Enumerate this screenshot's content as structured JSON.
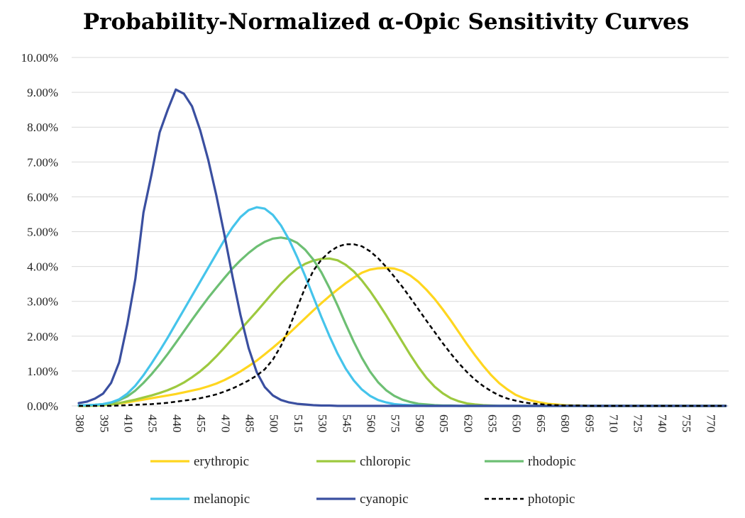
{
  "chart_data": {
    "type": "line",
    "title": "Probability-Normalized α-Opic Sensitivity Curves",
    "xlabel": "",
    "ylabel": "",
    "x": [
      380,
      385,
      390,
      395,
      400,
      405,
      410,
      415,
      420,
      425,
      430,
      435,
      440,
      445,
      450,
      455,
      460,
      465,
      470,
      475,
      480,
      485,
      490,
      495,
      500,
      505,
      510,
      515,
      520,
      525,
      530,
      535,
      540,
      545,
      550,
      555,
      560,
      565,
      570,
      575,
      580,
      585,
      590,
      595,
      600,
      605,
      610,
      615,
      620,
      625,
      630,
      635,
      640,
      645,
      650,
      655,
      660,
      665,
      670,
      675,
      680,
      685,
      690,
      695,
      700,
      705,
      710,
      715,
      720,
      725,
      730,
      735,
      740,
      745,
      750,
      755,
      760,
      765,
      770,
      775,
      780
    ],
    "x_tick_labels": [
      "380",
      "395",
      "410",
      "425",
      "440",
      "455",
      "470",
      "485",
      "500",
      "515",
      "530",
      "545",
      "560",
      "575",
      "590",
      "605",
      "620",
      "635",
      "650",
      "665",
      "680",
      "695",
      "710",
      "725",
      "740",
      "755",
      "770"
    ],
    "y_tick_labels": [
      "0.00%",
      "1.00%",
      "2.00%",
      "3.00%",
      "4.00%",
      "5.00%",
      "6.00%",
      "7.00%",
      "8.00%",
      "9.00%",
      "10.00%"
    ],
    "ylim": [
      0,
      10
    ],
    "y_unit": "%",
    "grid": "horizontal",
    "legend_position": "bottom",
    "series": [
      {
        "name": "erythropic",
        "color": "#FFD61F",
        "dash": "solid",
        "values": [
          0,
          0,
          0.01,
          0.02,
          0.04,
          0.07,
          0.1,
          0.14,
          0.18,
          0.22,
          0.26,
          0.3,
          0.34,
          0.39,
          0.44,
          0.49,
          0.56,
          0.64,
          0.74,
          0.86,
          0.99,
          1.14,
          1.3,
          1.48,
          1.67,
          1.87,
          2.08,
          2.3,
          2.52,
          2.74,
          2.95,
          3.15,
          3.34,
          3.52,
          3.68,
          3.82,
          3.91,
          3.95,
          3.96,
          3.94,
          3.87,
          3.74,
          3.56,
          3.33,
          3.07,
          2.77,
          2.45,
          2.11,
          1.77,
          1.45,
          1.15,
          0.88,
          0.65,
          0.47,
          0.32,
          0.22,
          0.15,
          0.1,
          0.06,
          0.04,
          0.02,
          0.01,
          0.01,
          0,
          0,
          0,
          0,
          0,
          0,
          0,
          0,
          0,
          0,
          0,
          0,
          0,
          0,
          0,
          0,
          0,
          0
        ]
      },
      {
        "name": "chloropic",
        "color": "#9DC93F",
        "dash": "solid",
        "values": [
          0,
          0,
          0.01,
          0.02,
          0.04,
          0.08,
          0.13,
          0.18,
          0.24,
          0.3,
          0.37,
          0.45,
          0.55,
          0.67,
          0.82,
          0.99,
          1.19,
          1.42,
          1.67,
          1.93,
          2.19,
          2.45,
          2.71,
          2.98,
          3.25,
          3.51,
          3.74,
          3.94,
          4.08,
          4.17,
          4.22,
          4.23,
          4.18,
          4.05,
          3.86,
          3.6,
          3.3,
          2.96,
          2.6,
          2.22,
          1.84,
          1.46,
          1.11,
          0.8,
          0.55,
          0.36,
          0.22,
          0.13,
          0.07,
          0.04,
          0.02,
          0.01,
          0,
          0,
          0,
          0,
          0,
          0,
          0,
          0,
          0,
          0,
          0,
          0,
          0,
          0,
          0,
          0,
          0,
          0,
          0,
          0,
          0,
          0,
          0,
          0,
          0,
          0,
          0,
          0,
          0
        ]
      },
      {
        "name": "rhodopic",
        "color": "#6DBF73",
        "dash": "solid",
        "values": [
          0.01,
          0.02,
          0.03,
          0.05,
          0.09,
          0.16,
          0.27,
          0.44,
          0.66,
          0.91,
          1.19,
          1.49,
          1.81,
          2.14,
          2.47,
          2.79,
          3.1,
          3.39,
          3.67,
          3.94,
          4.18,
          4.39,
          4.57,
          4.71,
          4.8,
          4.83,
          4.79,
          4.68,
          4.48,
          4.2,
          3.83,
          3.38,
          2.88,
          2.35,
          1.84,
          1.38,
          0.99,
          0.68,
          0.45,
          0.29,
          0.18,
          0.11,
          0.06,
          0.04,
          0.02,
          0.01,
          0.01,
          0,
          0,
          0,
          0,
          0,
          0,
          0,
          0,
          0,
          0,
          0,
          0,
          0,
          0,
          0,
          0,
          0,
          0,
          0,
          0,
          0,
          0,
          0,
          0,
          0,
          0,
          0,
          0,
          0,
          0,
          0,
          0,
          0,
          0
        ]
      },
      {
        "name": "melanopic",
        "color": "#45C4EB",
        "dash": "solid",
        "values": [
          0.01,
          0.02,
          0.03,
          0.05,
          0.1,
          0.19,
          0.35,
          0.58,
          0.88,
          1.22,
          1.58,
          1.96,
          2.36,
          2.76,
          3.16,
          3.56,
          3.96,
          4.36,
          4.76,
          5.12,
          5.42,
          5.62,
          5.7,
          5.66,
          5.48,
          5.18,
          4.77,
          4.27,
          3.72,
          3.13,
          2.55,
          2.0,
          1.5,
          1.07,
          0.73,
          0.47,
          0.29,
          0.17,
          0.1,
          0.05,
          0.03,
          0.02,
          0.01,
          0,
          0,
          0,
          0,
          0,
          0,
          0,
          0,
          0,
          0,
          0,
          0,
          0,
          0,
          0,
          0,
          0,
          0,
          0,
          0,
          0,
          0,
          0,
          0,
          0,
          0,
          0,
          0,
          0,
          0,
          0,
          0,
          0,
          0,
          0,
          0,
          0,
          0
        ]
      },
      {
        "name": "cyanopic",
        "color": "#3A4FA0",
        "dash": "solid",
        "values": [
          0.08,
          0.12,
          0.21,
          0.35,
          0.66,
          1.25,
          2.34,
          3.65,
          5.55,
          6.65,
          7.85,
          8.5,
          9.08,
          8.96,
          8.6,
          7.92,
          7.07,
          6.05,
          4.92,
          3.72,
          2.6,
          1.66,
          0.97,
          0.54,
          0.3,
          0.17,
          0.1,
          0.06,
          0.04,
          0.02,
          0.01,
          0.01,
          0,
          0,
          0,
          0,
          0,
          0,
          0,
          0,
          0,
          0,
          0,
          0,
          0,
          0,
          0,
          0,
          0,
          0,
          0,
          0,
          0,
          0,
          0,
          0,
          0,
          0,
          0,
          0,
          0,
          0,
          0,
          0,
          0,
          0,
          0,
          0,
          0,
          0,
          0,
          0,
          0,
          0,
          0,
          0,
          0,
          0,
          0,
          0,
          0
        ]
      },
      {
        "name": "photopic",
        "color": "#000000",
        "dash": "dashed",
        "values": [
          0,
          0,
          0,
          0,
          0,
          0.01,
          0.02,
          0.03,
          0.04,
          0.05,
          0.07,
          0.09,
          0.12,
          0.15,
          0.18,
          0.22,
          0.27,
          0.33,
          0.41,
          0.5,
          0.61,
          0.73,
          0.87,
          1.05,
          1.33,
          1.72,
          2.23,
          2.82,
          3.4,
          3.88,
          4.2,
          4.42,
          4.57,
          4.64,
          4.64,
          4.58,
          4.44,
          4.24,
          3.99,
          3.71,
          3.42,
          3.1,
          2.77,
          2.44,
          2.12,
          1.8,
          1.5,
          1.22,
          0.97,
          0.75,
          0.57,
          0.42,
          0.3,
          0.21,
          0.15,
          0.1,
          0.07,
          0.05,
          0.03,
          0.02,
          0.01,
          0.01,
          0.01,
          0,
          0,
          0,
          0,
          0,
          0,
          0,
          0,
          0,
          0,
          0,
          0,
          0,
          0,
          0,
          0,
          0,
          0
        ]
      }
    ]
  }
}
